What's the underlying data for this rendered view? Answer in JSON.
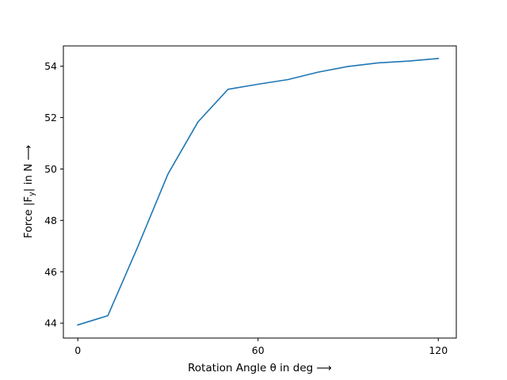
{
  "chart_data": {
    "type": "line",
    "xlabel": "Rotation Angle θ in deg ⟶",
    "ylabel": "Force |F",
    "ylabel_sub": "y",
    "ylabel_end": "| in N ⟶",
    "xlim": [
      -4.8,
      126
    ],
    "ylim": [
      43.42,
      54.79
    ],
    "xticks": [
      0,
      60,
      120
    ],
    "yticks": [
      44,
      46,
      48,
      50,
      52,
      54
    ],
    "grid": false,
    "line_color": "#1f77b4",
    "series": [
      {
        "x": [
          0,
          10,
          20,
          30,
          40,
          50,
          60,
          70,
          80,
          90,
          100,
          110,
          120
        ],
        "y": [
          43.93,
          44.29,
          46.98,
          49.8,
          51.83,
          53.1,
          53.3,
          53.48,
          53.77,
          53.99,
          54.13,
          54.2,
          54.3
        ]
      }
    ]
  }
}
